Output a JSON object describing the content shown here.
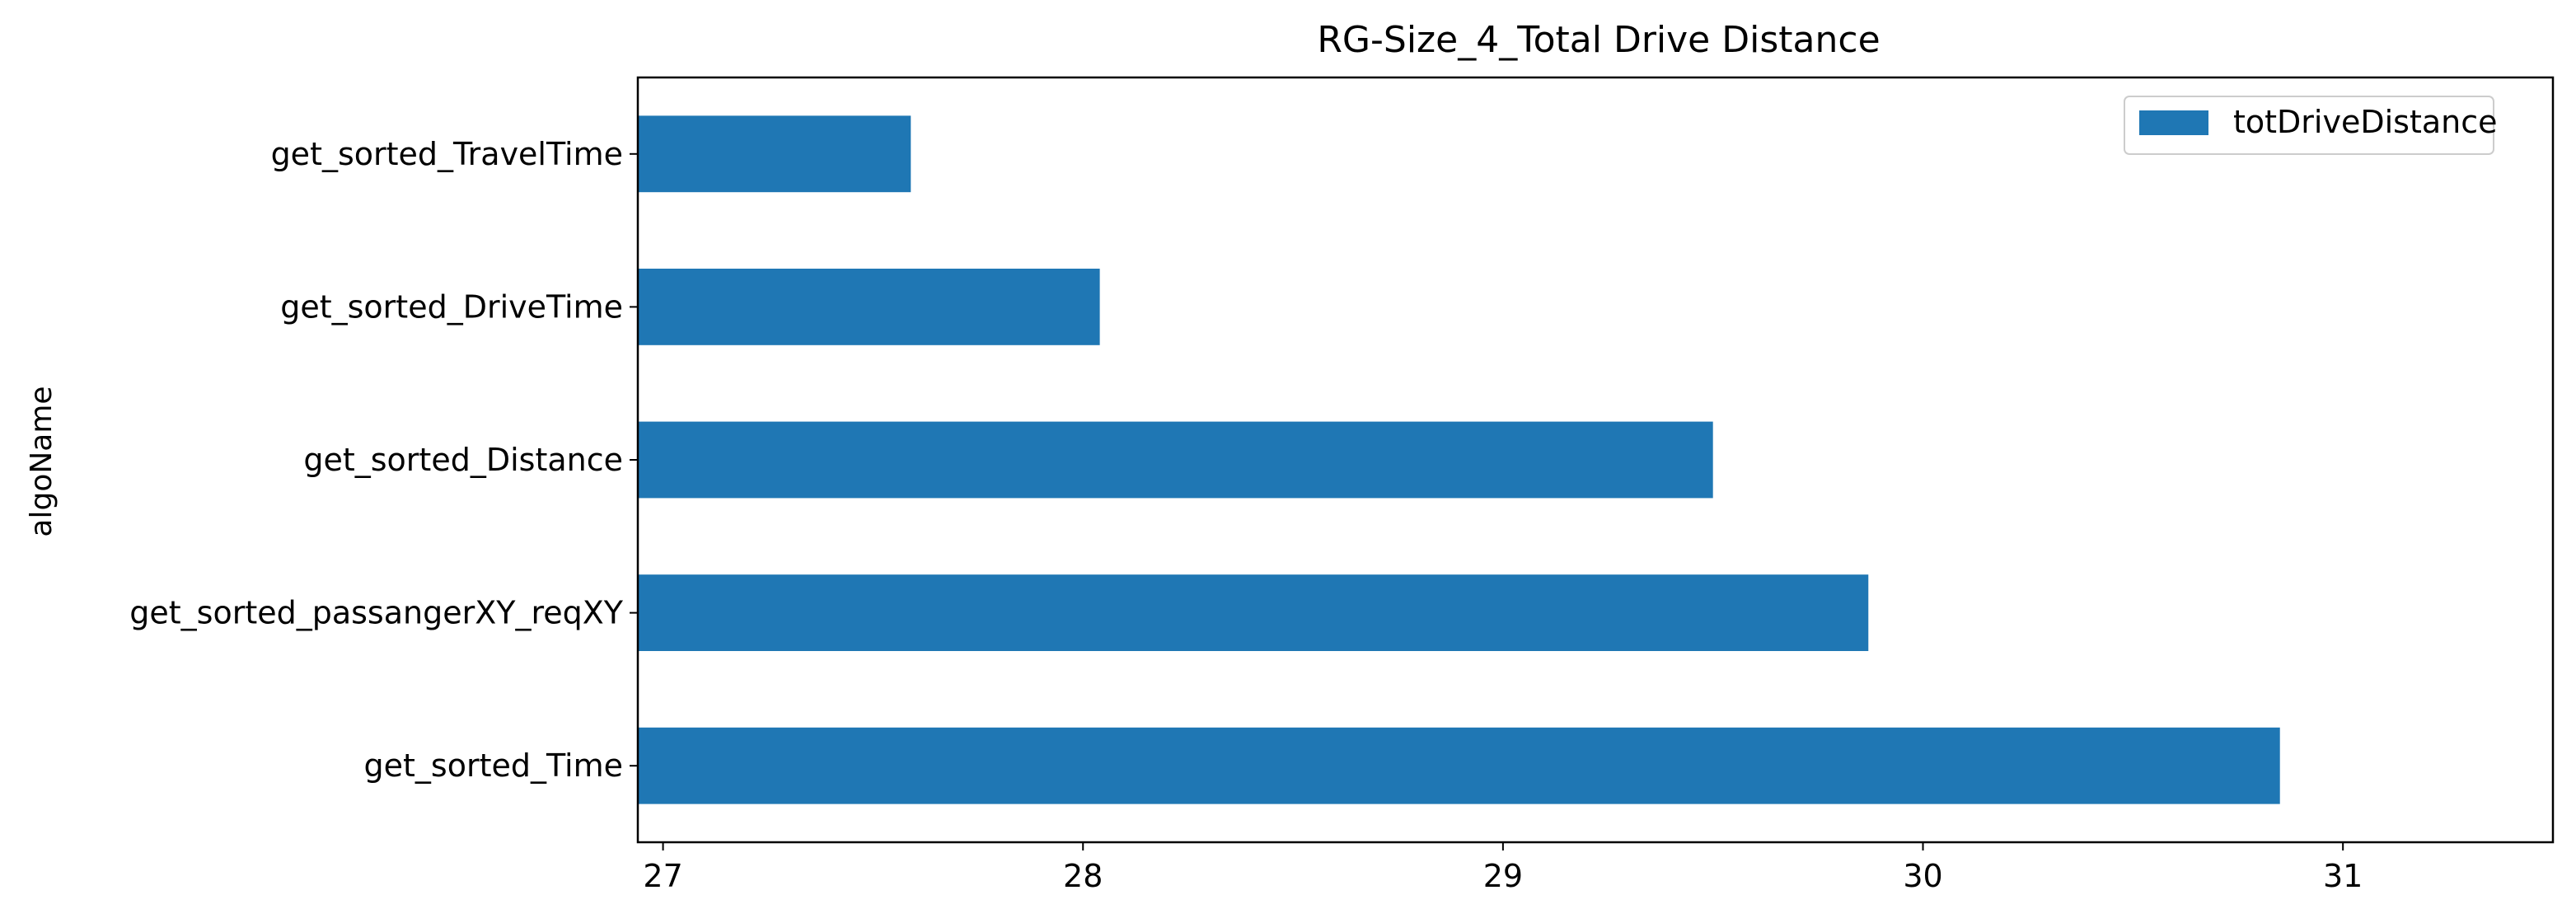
{
  "chart_data": {
    "type": "bar",
    "orientation": "horizontal",
    "title": "RG-Size_4_Total Drive Distance",
    "xlabel": "",
    "ylabel": "algoName",
    "categories": [
      "get_sorted_TravelTime",
      "get_sorted_DriveTime",
      "get_sorted_Distance",
      "get_sorted_passangerXY_reqXY",
      "get_sorted_Time"
    ],
    "series": [
      {
        "name": "totDriveDistance",
        "values": [
          27.59,
          28.04,
          29.5,
          29.87,
          30.85
        ]
      }
    ],
    "xlim": [
      26.94,
      31.5
    ],
    "xticks": [
      "27",
      "28",
      "29",
      "30",
      "31"
    ],
    "grid": false,
    "legend_position": "top-right",
    "bar_color": "#1f77b4"
  }
}
